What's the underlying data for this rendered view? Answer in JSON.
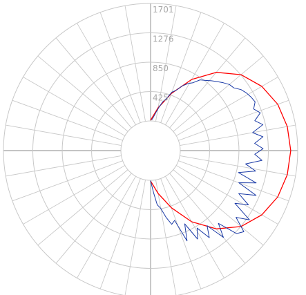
{
  "chart_data": {
    "type": "polar-line",
    "radial_tick_labels": [
      "425",
      "850",
      "1276",
      "1701"
    ],
    "radial_ticks": [
      425,
      850,
      1276,
      1701
    ],
    "r_max": 1701,
    "hub_radius_value": 0,
    "angular_step_deg": 10,
    "grid": true,
    "colors": {
      "grid": "#c8c8c8",
      "axis": "#b0b0b0",
      "tick_text": "#a8a8a8",
      "series_1": "#ff0000",
      "series_2": "#1a3aa6"
    },
    "series": [
      {
        "color": "#ff0000",
        "points": [
          [
            -90,
            10
          ],
          [
            -80,
            200
          ],
          [
            -70,
            450
          ],
          [
            -60,
            760
          ],
          [
            -50,
            1050
          ],
          [
            -40,
            1280
          ],
          [
            -30,
            1430
          ],
          [
            -20,
            1530
          ],
          [
            -10,
            1580
          ],
          [
            0,
            1600
          ],
          [
            10,
            1580
          ],
          [
            20,
            1530
          ],
          [
            30,
            1430
          ],
          [
            40,
            1280
          ],
          [
            50,
            1050
          ],
          [
            60,
            760
          ],
          [
            70,
            450
          ],
          [
            80,
            200
          ],
          [
            90,
            10
          ]
        ]
      },
      {
        "color": "#1a3aa6",
        "points": [
          [
            -88,
            12
          ],
          [
            -85,
            60
          ],
          [
            -82,
            130
          ],
          [
            -79,
            210
          ],
          [
            -76,
            300
          ],
          [
            -73,
            360
          ],
          [
            -70,
            470
          ],
          [
            -67,
            520
          ],
          [
            -64,
            610
          ],
          [
            -61,
            680
          ],
          [
            -58,
            730
          ],
          [
            -55,
            820
          ],
          [
            -52,
            860
          ],
          [
            -49,
            910
          ],
          [
            -46,
            960
          ],
          [
            -43,
            1010
          ],
          [
            -40,
            1060
          ],
          [
            -37,
            1080
          ],
          [
            -34,
            1150
          ],
          [
            -31,
            1190
          ],
          [
            -28,
            1220
          ],
          [
            -25,
            1240
          ],
          [
            -22,
            1180
          ],
          [
            -19,
            1250
          ],
          [
            -16,
            1140
          ],
          [
            -13,
            1240
          ],
          [
            -10,
            1070
          ],
          [
            -7,
            1210
          ],
          [
            -4,
            1080
          ],
          [
            -1,
            1200
          ],
          [
            2,
            1080
          ],
          [
            5,
            1190
          ],
          [
            8,
            960
          ],
          [
            11,
            1120
          ],
          [
            14,
            880
          ],
          [
            17,
            1170
          ],
          [
            20,
            930
          ],
          [
            23,
            1230
          ],
          [
            26,
            990
          ],
          [
            29,
            1190
          ],
          [
            32,
            1010
          ],
          [
            35,
            1320
          ],
          [
            38,
            1140
          ],
          [
            41,
            1360
          ],
          [
            44,
            1300
          ],
          [
            47,
            1010
          ],
          [
            50,
            1210
          ],
          [
            53,
            930
          ],
          [
            56,
            1090
          ],
          [
            59,
            880
          ],
          [
            62,
            1020
          ],
          [
            65,
            740
          ],
          [
            68,
            980
          ],
          [
            71,
            640
          ],
          [
            74,
            680
          ],
          [
            77,
            560
          ],
          [
            80,
            420
          ],
          [
            83,
            360
          ],
          [
            86,
            180
          ],
          [
            89,
            40
          ],
          [
            90,
            5
          ]
        ]
      }
    ]
  }
}
